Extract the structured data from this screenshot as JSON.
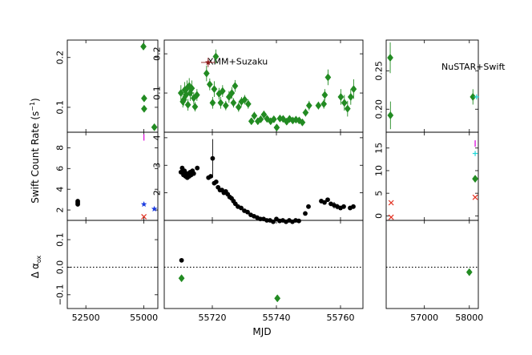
{
  "chart_data": {
    "type": "scatter",
    "xlabel": "MJD",
    "ylabels": {
      "rate": "Swift Count Rate (s",
      "rate_sup": "−1",
      "rate_close": ")",
      "alpha_delta": "Δ",
      "alpha_sym": "α",
      "alpha_sub": "ox"
    },
    "colors": {
      "green": "#228b22",
      "black": "#000000",
      "darkred": "#8b1a1a",
      "red": "#e23020",
      "blue": "#1c3ce0",
      "magenta": "#e020e0",
      "cyan": "#20d8d8"
    },
    "columns": [
      {
        "id": "left",
        "xlim": [
          51700,
          55600
        ],
        "xticks": [
          52500,
          55000
        ],
        "xticklabels": [
          "52500",
          "55000"
        ]
      },
      {
        "id": "mid",
        "xlim": [
          55705,
          55767
        ],
        "xticks": [
          55720,
          55740,
          55760
        ],
        "xticklabels": [
          "55720",
          "55740",
          "55760"
        ]
      },
      {
        "id": "right",
        "xlim": [
          56150,
          58200
        ],
        "xticks": [
          57000,
          58000
        ],
        "xticklabels": [
          "57000",
          "58000"
        ]
      }
    ],
    "rows": [
      {
        "id": "top",
        "ylims": [
          [
            0.05,
            0.235
          ],
          [
            0.0,
            0.235
          ],
          [
            0.17,
            0.29
          ]
        ],
        "yticks": [
          [
            0.1,
            0.2
          ],
          [
            0.1,
            0.2
          ],
          [
            0.2,
            0.25
          ]
        ],
        "yticklabels": [
          [
            "0.1",
            "0.2"
          ],
          [
            "0.1",
            "0.2"
          ],
          [
            "0.20",
            "0.25"
          ]
        ]
      },
      {
        "id": "mid",
        "ylims": [
          [
            1.0,
            9.5
          ],
          [
            1.0,
            4.2
          ],
          [
            -1.0,
            18.5
          ]
        ],
        "yticks": [
          [
            2,
            4,
            6,
            8
          ],
          [
            2,
            3,
            4
          ],
          [
            0,
            5,
            10,
            15
          ]
        ],
        "yticklabels": [
          [
            "2",
            "4",
            "6",
            "8"
          ],
          [
            "2",
            "3",
            "4"
          ],
          [
            "0",
            "5",
            "10",
            "15"
          ]
        ]
      },
      {
        "id": "bottom",
        "ylims": [
          [
            -0.15,
            0.17
          ],
          [
            -0.15,
            0.17
          ],
          [
            -0.15,
            0.17
          ]
        ],
        "yticks": [
          [
            -0.1,
            0.0,
            0.1
          ],
          [],
          []
        ],
        "yticklabels": [
          [
            "−0.1",
            "0.0",
            "0.1"
          ],
          [],
          []
        ],
        "refline": 0.0
      }
    ],
    "annotations": [
      {
        "text": "XMM+Suzaku",
        "row": "top",
        "col": "mid",
        "x": 55718.5,
        "y": 0.18
      },
      {
        "text": "NuSTAR+Swift",
        "row": "top",
        "col": "right",
        "x": 57380,
        "y": 0.255
      }
    ],
    "series": [
      {
        "row": "top",
        "col": "left",
        "color": "green",
        "marker": "diamond",
        "x": [
          54980,
          55010,
          55010,
          55450
        ],
        "y": [
          0.222,
          0.118,
          0.097,
          0.06
        ]
      },
      {
        "row": "top",
        "col": "mid",
        "color": "green",
        "marker": "diamond",
        "x": [
          55710.2,
          55710.8,
          55711.1,
          55711.4,
          55711.8,
          55712.1,
          55712.4,
          55712.8,
          55713.1,
          55713.6,
          55714.2,
          55714.6,
          55715.2,
          55718.2,
          55719.2,
          55720.1,
          55720.6,
          55721.1,
          55722.1,
          55722.6,
          55723.2,
          55724.2,
          55725.2,
          55726.1,
          55726.6,
          55727.1,
          55728.2,
          55729.1,
          55730.1,
          55731.2,
          55732.2,
          55733.1,
          55734.2,
          55735.1,
          55736.1,
          55737.1,
          55738.2,
          55739.2,
          55740.1,
          55741.1,
          55742.1,
          55743.2,
          55744.1,
          55745.1,
          55746.1,
          55747.1,
          55748.1,
          55749.1,
          55750.2,
          55753.1,
          55754.8,
          55755.1,
          55756.1,
          55760.1,
          55761.2,
          55762.2,
          55763.2,
          55764.1
        ],
        "y": [
          0.1,
          0.078,
          0.083,
          0.108,
          0.095,
          0.112,
          0.07,
          0.118,
          0.1,
          0.112,
          0.087,
          0.065,
          0.095,
          0.15,
          0.122,
          0.075,
          0.11,
          0.193,
          0.098,
          0.075,
          0.105,
          0.068,
          0.09,
          0.1,
          0.075,
          0.118,
          0.064,
          0.078,
          0.083,
          0.072,
          0.028,
          0.042,
          0.028,
          0.033,
          0.045,
          0.034,
          0.028,
          0.033,
          0.012,
          0.035,
          0.034,
          0.027,
          0.034,
          0.03,
          0.032,
          0.03,
          0.025,
          0.05,
          0.068,
          0.068,
          0.072,
          0.095,
          0.14,
          0.09,
          0.075,
          0.06,
          0.09,
          0.11
        ],
        "yerr": [
          0.02,
          0.015,
          0.015,
          0.02,
          0.015,
          0.02,
          0.015,
          0.02,
          0.02,
          0.02,
          0.015,
          0.012,
          0.015,
          0.02,
          0.015,
          0.015,
          0.02,
          0.018,
          0.015,
          0.015,
          0.015,
          0.012,
          0.015,
          0.015,
          0.012,
          0.015,
          0.012,
          0.012,
          0.012,
          0.012,
          0.008,
          0.01,
          0.008,
          0.008,
          0.01,
          0.008,
          0.008,
          0.008,
          0.008,
          0.008,
          0.008,
          0.008,
          0.008,
          0.008,
          0.008,
          0.008,
          0.008,
          0.01,
          0.012,
          0.01,
          0.012,
          0.015,
          0.02,
          0.02,
          0.02,
          0.02,
          0.02,
          0.025
        ]
      },
      {
        "row": "top",
        "col": "mid",
        "color": "darkred",
        "marker": "star",
        "x": [
          55718.7
        ],
        "y": [
          0.178
        ],
        "xerr": [
          2.2
        ],
        "yerr": [
          0.012
        ]
      },
      {
        "row": "top",
        "col": "right",
        "color": "green",
        "marker": "diamond",
        "x": [
          56240,
          56245,
          58080
        ],
        "y": [
          0.267,
          0.192,
          0.216
        ],
        "yerr": [
          0.02,
          0.018,
          0.01
        ]
      },
      {
        "row": "top",
        "col": "right",
        "color": "cyan",
        "marker": "plus",
        "x": [
          58160
        ],
        "y": [
          0.216
        ]
      },
      {
        "row": "mid",
        "col": "left",
        "color": "black",
        "marker": "circle",
        "x": [
          52150,
          52150,
          52150
        ],
        "y": [
          2.55,
          2.7,
          2.85
        ]
      },
      {
        "row": "mid",
        "col": "left",
        "color": "blue",
        "marker": "star",
        "x": [
          55000,
          55450
        ],
        "y": [
          2.55,
          2.1
        ]
      },
      {
        "row": "mid",
        "col": "left",
        "color": "red",
        "marker": "x",
        "x": [
          55000
        ],
        "y": [
          1.35
        ]
      },
      {
        "row": "mid",
        "col": "left",
        "color": "magenta",
        "marker": "tick",
        "x": [
          55000
        ],
        "y": [
          9.0
        ]
      },
      {
        "row": "mid",
        "col": "mid",
        "color": "black",
        "marker": "circle",
        "x": [
          55710.2,
          55710.6,
          55711.0,
          55711.3,
          55711.6,
          55711.9,
          55712.2,
          55712.5,
          55712.8,
          55713.1,
          55713.4,
          55713.8,
          55714.2,
          55715.3,
          55718.8,
          55719.5,
          55720.1,
          55720.6,
          55721.2,
          55721.8,
          55722.4,
          55723.0,
          55723.6,
          55724.2,
          55724.8,
          55725.4,
          55726.0,
          55726.6,
          55727.2,
          55728.0,
          55729.0,
          55730.0,
          55731.0,
          55732.0,
          55733.0,
          55734.0,
          55735.0,
          55736.0,
          55737.0,
          55738.0,
          55739.0,
          55740.0,
          55741.0,
          55742.0,
          55743.0,
          55744.0,
          55745.0,
          55746.0,
          55747.0,
          55749.0,
          55750.0,
          55754.0,
          55755.0,
          55756.0,
          55757.0,
          55758.0,
          55759.0,
          55760.0,
          55761.0,
          55763.0,
          55764.0
        ],
        "y": [
          2.75,
          2.9,
          2.65,
          2.8,
          2.6,
          2.7,
          2.55,
          2.7,
          2.6,
          2.75,
          2.65,
          2.8,
          2.7,
          2.9,
          2.55,
          2.6,
          3.25,
          2.35,
          2.4,
          2.2,
          2.1,
          2.1,
          2.0,
          2.05,
          1.95,
          1.85,
          1.8,
          1.7,
          1.6,
          1.5,
          1.45,
          1.35,
          1.3,
          1.2,
          1.15,
          1.1,
          1.05,
          1.05,
          1.0,
          1.0,
          0.95,
          1.05,
          0.98,
          1.0,
          0.95,
          1.0,
          0.95,
          1.0,
          0.98,
          1.25,
          1.5,
          1.7,
          1.65,
          1.75,
          1.6,
          1.55,
          1.5,
          1.45,
          1.5,
          1.45,
          1.5
        ],
        "yerr": [
          0.08,
          0.08,
          0.08,
          0.08,
          0.08,
          0.08,
          0.08,
          0.08,
          0.08,
          0.08,
          0.08,
          0.08,
          0.08,
          0.08,
          0.08,
          0.08,
          0.7,
          0.08,
          0.08,
          0.08,
          0.06,
          0.06,
          0.06,
          0.06,
          0.06,
          0.06,
          0.06,
          0.06,
          0.06,
          0.05,
          0.05,
          0.05,
          0.05,
          0.05,
          0.05,
          0.05,
          0.05,
          0.05,
          0.05,
          0.05,
          0.05,
          0.05,
          0.05,
          0.05,
          0.05,
          0.05,
          0.05,
          0.05,
          0.05,
          0.05,
          0.05,
          0.08,
          0.08,
          0.08,
          0.08,
          0.12,
          0.1,
          0.08,
          0.08,
          0.08,
          0.08
        ]
      },
      {
        "row": "mid",
        "col": "right",
        "color": "red",
        "marker": "x",
        "x": [
          56260,
          56260,
          58130
        ],
        "y": [
          2.9,
          -0.3,
          4.1
        ]
      },
      {
        "row": "mid",
        "col": "right",
        "color": "green",
        "marker": "diamond",
        "x": [
          58130
        ],
        "y": [
          8.2
        ]
      },
      {
        "row": "mid",
        "col": "right",
        "color": "cyan",
        "marker": "plus",
        "x": [
          58130
        ],
        "y": [
          13.8
        ]
      },
      {
        "row": "mid",
        "col": "right",
        "color": "magenta",
        "marker": "tick",
        "x": [
          58130
        ],
        "y": [
          16.0
        ]
      },
      {
        "row": "bottom",
        "col": "mid",
        "color": "black",
        "marker": "circle",
        "x": [
          55710.4
        ],
        "y": [
          0.025
        ]
      },
      {
        "row": "bottom",
        "col": "mid",
        "color": "green",
        "marker": "diamond",
        "x": [
          55710.4,
          55740.3
        ],
        "y": [
          -0.04,
          -0.113
        ]
      },
      {
        "row": "bottom",
        "col": "right",
        "color": "green",
        "marker": "diamond",
        "x": [
          58000
        ],
        "y": [
          -0.018
        ]
      }
    ]
  }
}
